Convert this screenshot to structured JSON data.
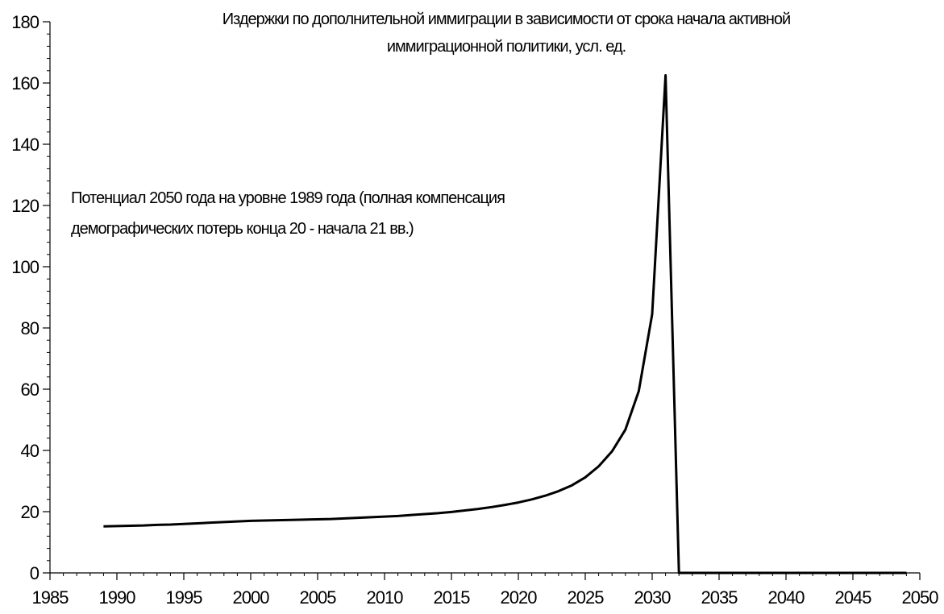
{
  "chart_data": {
    "type": "line",
    "title_lines": [
      "Издержки по дополнительной иммиграции в зависимости от срока начала активной",
      "иммиграционной политики, усл. ед."
    ],
    "annotation_lines": [
      "Потенциал 2050 года на уровне 1989 года (полная компенсация",
      "демографических потерь конца 20 - начала 21 вв.)"
    ],
    "xlabel": "",
    "ylabel": "",
    "xlim": [
      1985,
      2050
    ],
    "ylim": [
      0,
      180
    ],
    "x_ticks": [
      1985,
      1990,
      1995,
      2000,
      2005,
      2010,
      2015,
      2020,
      2025,
      2030,
      2035,
      2040,
      2045,
      2050
    ],
    "y_ticks": [
      0,
      20,
      40,
      60,
      80,
      100,
      120,
      140,
      160,
      180
    ],
    "x_minor_step": 1,
    "y_minor_step": 4,
    "grid": false,
    "legend": "none",
    "line_color": "#000000",
    "series": [
      {
        "x": [
          1989,
          1990,
          1991,
          1992,
          1993,
          1994,
          1995,
          1996,
          1997,
          1998,
          1999,
          2000,
          2001,
          2002,
          2003,
          2004,
          2005,
          2006,
          2007,
          2008,
          2009,
          2010,
          2011,
          2012,
          2013,
          2014,
          2015,
          2016,
          2017,
          2018,
          2019,
          2020,
          2021,
          2022,
          2023,
          2024,
          2025,
          2026,
          2027,
          2028,
          2029,
          2030,
          2031,
          2032,
          2033,
          2034,
          2035,
          2036,
          2037,
          2038,
          2039,
          2040,
          2041,
          2042,
          2043,
          2044,
          2045,
          2046,
          2047,
          2048,
          2049
        ],
        "y": [
          15.2,
          15.3,
          15.4,
          15.5,
          15.7,
          15.8,
          16.0,
          16.2,
          16.4,
          16.6,
          16.8,
          17.0,
          17.1,
          17.2,
          17.3,
          17.4,
          17.5,
          17.6,
          17.8,
          18.0,
          18.2,
          18.4,
          18.6,
          18.9,
          19.2,
          19.5,
          19.9,
          20.4,
          20.9,
          21.5,
          22.2,
          23.0,
          24.0,
          25.2,
          26.7,
          28.6,
          31.2,
          34.8,
          39.7,
          46.8,
          59.4,
          84.5,
          162.5,
          0,
          0,
          0,
          0,
          0,
          0,
          0,
          0,
          0,
          0,
          0,
          0,
          0,
          0,
          0,
          0,
          0,
          0
        ]
      }
    ]
  }
}
